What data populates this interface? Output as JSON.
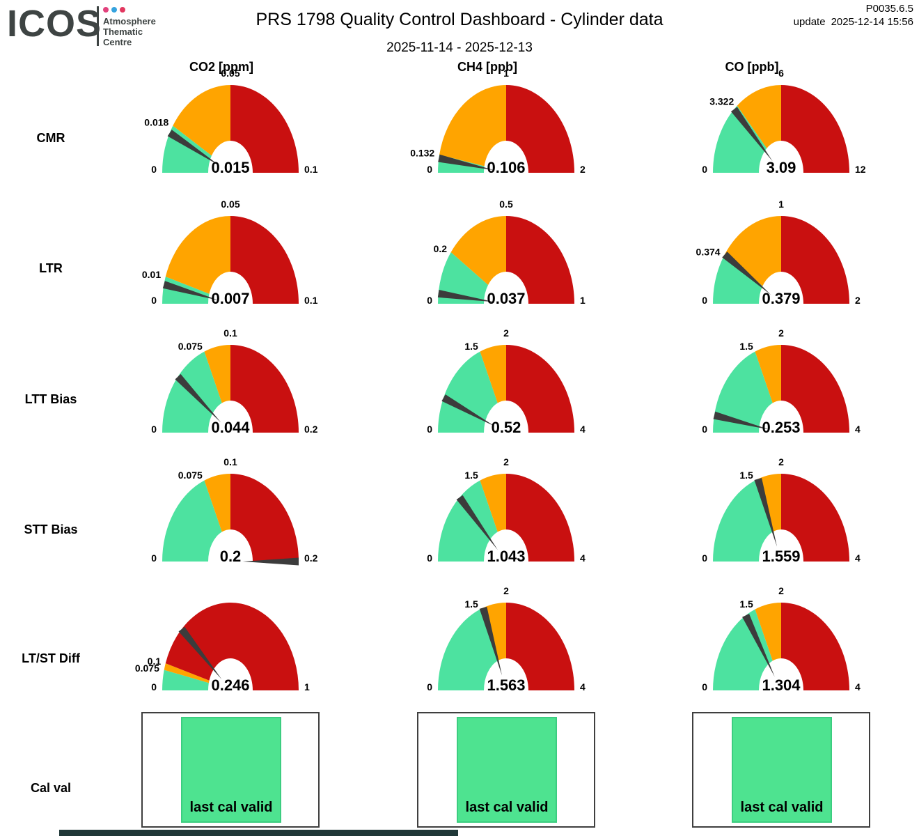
{
  "header": {
    "logo": "ICOS",
    "logo_subtitle": [
      "Atmosphere",
      "Thematic",
      "Centre"
    ],
    "title": "PRS 1798 Quality Control Dashboard - Cylinder data",
    "date_range": "2025-11-14 - 2025-12-13",
    "version": "P0035.6.5",
    "update_label": "update",
    "update_value": "2025-12-14 15:56"
  },
  "columns": [
    "CO2 [ppm]",
    "CH4 [ppb]",
    "CO [ppb]"
  ],
  "rows": [
    "CMR",
    "LTR",
    "LTT Bias",
    "STT Bias",
    "LT/ST Diff",
    "Cal val"
  ],
  "colors": {
    "green": "#4DE2A0",
    "orange": "#FFA400",
    "red": "#C91010",
    "needle": "#3C3C3C",
    "box_green": "#4EE390",
    "box_green_border": "#3CCD80",
    "dot_pink": "#E2427D",
    "dot_blue": "#36A3DE",
    "dot_red": "#E2375F"
  },
  "chart_data": [
    {
      "type": "gauge",
      "row": "CMR",
      "column": "CO2 [ppm]",
      "min": 0,
      "max": 0.1,
      "green_end": 0.018,
      "orange_end": 0.05,
      "value": 0.015,
      "min_label": "0",
      "max_label": "0.1",
      "green_label": "0.018",
      "orange_label": "0.05",
      "value_label": "0.015"
    },
    {
      "type": "gauge",
      "row": "CMR",
      "column": "CH4 [ppb]",
      "min": 0,
      "max": 2,
      "green_end": 0.132,
      "orange_end": 1,
      "value": 0.106,
      "min_label": "0",
      "max_label": "2",
      "green_label": "0.132",
      "orange_label": "1",
      "value_label": "0.106"
    },
    {
      "type": "gauge",
      "row": "CMR",
      "column": "CO [ppb]",
      "min": 0,
      "max": 12,
      "green_end": 3.322,
      "orange_end": 6,
      "value": 3.09,
      "min_label": "0",
      "max_label": "12",
      "green_label": "3.322",
      "orange_label": "6",
      "value_label": "3.09"
    },
    {
      "type": "gauge",
      "row": "LTR",
      "column": "CO2 [ppm]",
      "min": 0,
      "max": 0.1,
      "green_end": 0.01,
      "orange_end": 0.05,
      "value": 0.007,
      "min_label": "0",
      "max_label": "0.1",
      "green_label": "0.01",
      "orange_label": "0.05",
      "value_label": "0.007"
    },
    {
      "type": "gauge",
      "row": "LTR",
      "column": "CH4 [ppb]",
      "min": 0,
      "max": 1,
      "green_end": 0.2,
      "orange_end": 0.5,
      "value": 0.037,
      "min_label": "0",
      "max_label": "1",
      "green_label": "0.2",
      "orange_label": "0.5",
      "value_label": "0.037"
    },
    {
      "type": "gauge",
      "row": "LTR",
      "column": "CO [ppb]",
      "min": 0,
      "max": 2,
      "green_end": 0.374,
      "orange_end": 1,
      "value": 0.379,
      "min_label": "0",
      "max_label": "2",
      "green_label": "0.374",
      "orange_label": "1",
      "value_label": "0.379"
    },
    {
      "type": "gauge",
      "row": "LTT Bias",
      "column": "CO2 [ppm]",
      "min": 0,
      "max": 0.2,
      "green_end": 0.075,
      "orange_end": 0.1,
      "value": 0.044,
      "min_label": "0",
      "max_label": "0.2",
      "green_label": "0.075",
      "orange_label": "0.1",
      "value_label": "0.044"
    },
    {
      "type": "gauge",
      "row": "LTT Bias",
      "column": "CH4 [ppb]",
      "min": 0,
      "max": 4,
      "green_end": 1.5,
      "orange_end": 2,
      "value": 0.52,
      "min_label": "0",
      "max_label": "4",
      "green_label": "1.5",
      "orange_label": "2",
      "value_label": "0.52"
    },
    {
      "type": "gauge",
      "row": "LTT Bias",
      "column": "CO [ppb]",
      "min": 0,
      "max": 4,
      "green_end": 1.5,
      "orange_end": 2,
      "value": 0.253,
      "min_label": "0",
      "max_label": "4",
      "green_label": "1.5",
      "orange_label": "2",
      "value_label": "0.253"
    },
    {
      "type": "gauge",
      "row": "STT Bias",
      "column": "CO2 [ppm]",
      "min": 0,
      "max": 0.2,
      "green_end": 0.075,
      "orange_end": 0.1,
      "value": 0.2,
      "min_label": "0",
      "max_label": "0.2",
      "green_label": "0.075",
      "orange_label": "0.1",
      "value_label": "0.2"
    },
    {
      "type": "gauge",
      "row": "STT Bias",
      "column": "CH4 [ppb]",
      "min": 0,
      "max": 4,
      "green_end": 1.5,
      "orange_end": 2,
      "value": 1.043,
      "min_label": "0",
      "max_label": "4",
      "green_label": "1.5",
      "orange_label": "2",
      "value_label": "1.043"
    },
    {
      "type": "gauge",
      "row": "STT Bias",
      "column": "CO [ppb]",
      "min": 0,
      "max": 4,
      "green_end": 1.5,
      "orange_end": 2,
      "value": 1.559,
      "min_label": "0",
      "max_label": "4",
      "green_label": "1.5",
      "orange_label": "2",
      "value_label": "1.559"
    },
    {
      "type": "gauge",
      "row": "LT/ST Diff",
      "column": "CO2 [ppm]",
      "min": 0,
      "max": 1,
      "green_end": 0.075,
      "orange_end": 0.1,
      "value": 0.246,
      "min_label": "0",
      "max_label": "1",
      "green_label": "0.075",
      "orange_label": "0.1",
      "value_label": "0.246"
    },
    {
      "type": "gauge",
      "row": "LT/ST Diff",
      "column": "CH4 [ppb]",
      "min": 0,
      "max": 4,
      "green_end": 1.5,
      "orange_end": 2,
      "value": 1.563,
      "min_label": "0",
      "max_label": "4",
      "green_label": "1.5",
      "orange_label": "2",
      "value_label": "1.563"
    },
    {
      "type": "gauge",
      "row": "LT/ST Diff",
      "column": "CO [ppb]",
      "min": 0,
      "max": 4,
      "green_end": 1.5,
      "orange_end": 2,
      "value": 1.304,
      "min_label": "0",
      "max_label": "4",
      "green_label": "1.5",
      "orange_label": "2",
      "value_label": "1.304"
    }
  ],
  "cal_val": {
    "label": "last cal valid"
  }
}
